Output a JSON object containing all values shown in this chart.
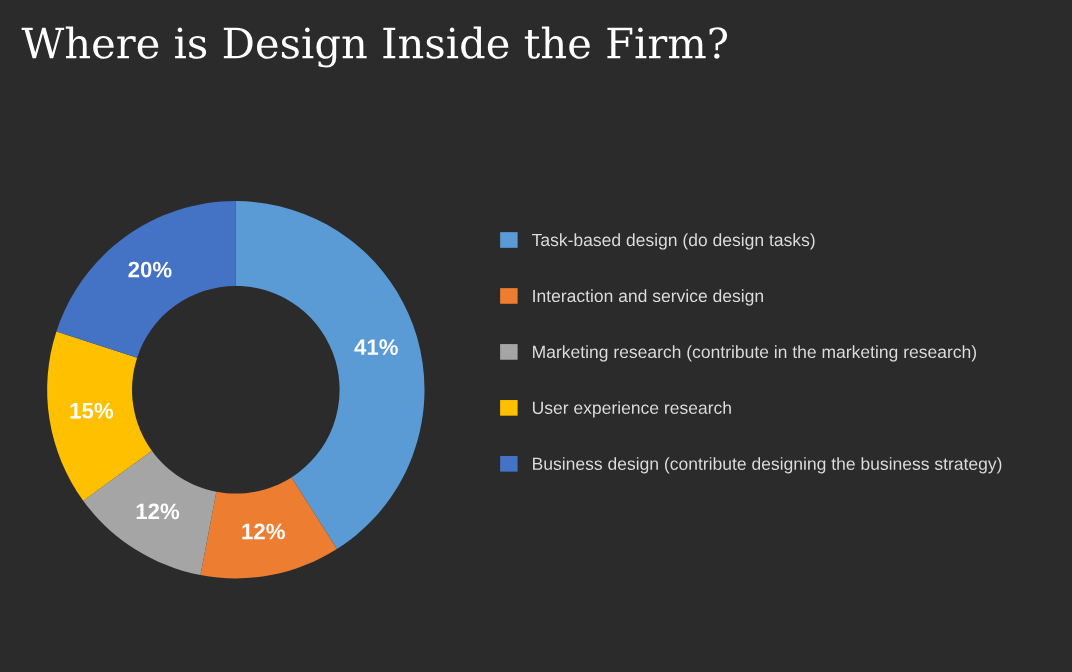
{
  "chart_data": {
    "type": "donut",
    "title": "Where is Design Inside the Firm?",
    "categories": [
      "Task-based design (do design tasks)",
      "Interaction and service design",
      "Marketing research (contribute in the marketing research)",
      "User experience research",
      "Business design (contribute designing the business strategy)"
    ],
    "values": [
      41,
      12,
      12,
      15,
      20
    ],
    "colors": [
      "#5b9bd5",
      "#ed7d31",
      "#a5a5a5",
      "#ffc000",
      "#4472c4"
    ],
    "value_labels": [
      "41%",
      "12%",
      "12%",
      "15%",
      "20%"
    ],
    "legend": "right"
  }
}
